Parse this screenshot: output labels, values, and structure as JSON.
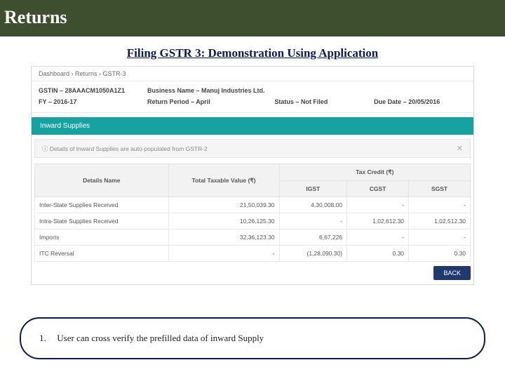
{
  "header": {
    "title": "Returns"
  },
  "subtitle": "Filing GSTR 3: Demonstration Using Application",
  "breadcrumb": "Dashboard  ›  Returns  ›  GSTR-3",
  "meta": {
    "gstin_label": "GSTIN – ",
    "gstin_value": "28AAACM1050A1Z1",
    "biz_label": "Business Name – ",
    "biz_value": "Manuj Industries Ltd.",
    "fy_label": "FY – ",
    "fy_value": "2016-17",
    "period_label": "Return Period – ",
    "period_value": "April",
    "status_label": "Status – ",
    "status_value": "Not Filed",
    "due_label": "Due Date – ",
    "due_value": "20/05/2016"
  },
  "section": {
    "title": "Inward Supplies",
    "info": "Details of Inward Supplies are auto-populated from GSTR-2"
  },
  "table": {
    "headers": {
      "details": "Details Name",
      "taxable": "Total Taxable Value (₹)",
      "taxcredit": "Tax Credit (₹)",
      "igst": "IGST",
      "cgst": "CGST",
      "sgst": "SGST"
    },
    "rows": [
      {
        "name": "Inter-State Supplies Received",
        "taxable": "21,50,039.30",
        "igst": "4,30,008.00",
        "cgst": "-",
        "sgst": "-"
      },
      {
        "name": "Intra-State Supplies Received",
        "taxable": "10,26,125.30",
        "igst": "-",
        "cgst": "1,02,612.30",
        "sgst": "1,02,512.30"
      },
      {
        "name": "Imports",
        "taxable": "32,36,123.30",
        "igst": "6,67,226",
        "cgst": "-",
        "sgst": "-"
      },
      {
        "name": "ITC Reversal",
        "taxable": "-",
        "igst": "(1,28,090.30)",
        "cgst": "0.30",
        "sgst": "0.30"
      }
    ]
  },
  "buttons": {
    "back": "BACK"
  },
  "note": {
    "num": "1.",
    "text": "User can cross verify the prefilled data of inward Supply"
  },
  "colors": {
    "header_bg": "#3e4f2f",
    "section_bg": "#17a2a2",
    "back_bg": "#1f3a6e",
    "pill_border": "#0b1a5b"
  }
}
